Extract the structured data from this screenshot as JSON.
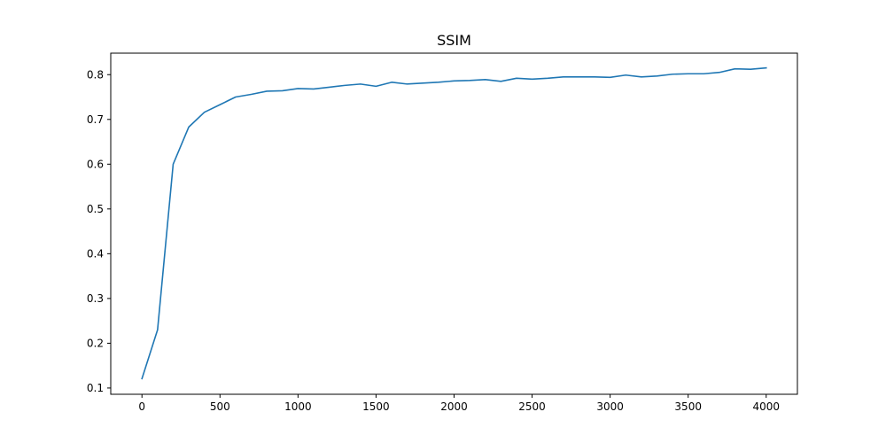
{
  "chart_data": {
    "type": "line",
    "title": "SSIM",
    "xlabel": "",
    "ylabel": "",
    "xlim": [
      -200,
      4200
    ],
    "ylim": [
      0.086,
      0.848
    ],
    "x_ticks": [
      0,
      500,
      1000,
      1500,
      2000,
      2500,
      3000,
      3500,
      4000
    ],
    "x_tick_labels": [
      "0",
      "500",
      "1000",
      "1500",
      "2000",
      "2500",
      "3000",
      "3500",
      "4000"
    ],
    "y_ticks": [
      0.1,
      0.2,
      0.3,
      0.4,
      0.5,
      0.6,
      0.7,
      0.8
    ],
    "y_tick_labels": [
      "0.1",
      "0.2",
      "0.3",
      "0.4",
      "0.5",
      "0.6",
      "0.7",
      "0.8"
    ],
    "grid": false,
    "colors": {
      "series": "#1f77b4"
    },
    "series": [
      {
        "x": [
          0,
          100,
          200,
          300,
          400,
          500,
          600,
          700,
          800,
          900,
          1000,
          1100,
          1200,
          1300,
          1400,
          1500,
          1600,
          1700,
          1800,
          1900,
          2000,
          2100,
          2200,
          2300,
          2400,
          2500,
          2600,
          2700,
          2800,
          2900,
          3000,
          3100,
          3200,
          3300,
          3400,
          3500,
          3600,
          3700,
          3800,
          3900,
          4000
        ],
        "values": [
          0.121,
          0.23,
          0.6,
          0.683,
          0.716,
          0.733,
          0.75,
          0.756,
          0.763,
          0.764,
          0.769,
          0.768,
          0.772,
          0.776,
          0.779,
          0.774,
          0.783,
          0.779,
          0.781,
          0.783,
          0.786,
          0.787,
          0.789,
          0.785,
          0.792,
          0.79,
          0.792,
          0.795,
          0.795,
          0.795,
          0.794,
          0.799,
          0.795,
          0.797,
          0.801,
          0.802,
          0.802,
          0.805,
          0.813,
          0.812,
          0.815
        ]
      }
    ]
  }
}
